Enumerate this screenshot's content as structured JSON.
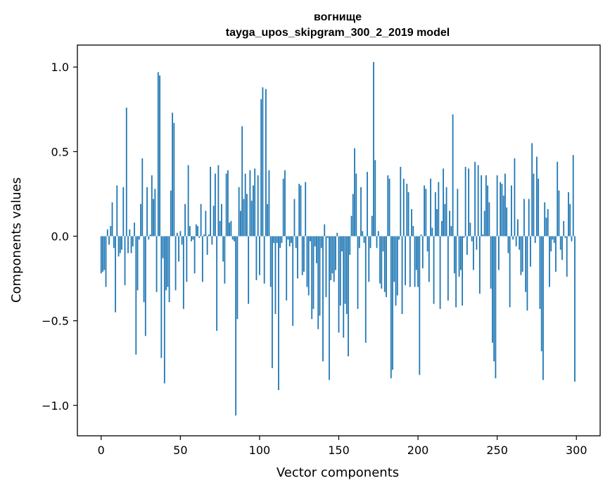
{
  "chart_data": {
    "type": "bar",
    "title": "вогнище",
    "subtitle": "tayga_upos_skipgram_300_2_2019 model",
    "xlabel": "Vector components",
    "ylabel": "Components values",
    "xlim": [
      -15,
      315
    ],
    "ylim": [
      -1.18,
      1.13
    ],
    "xticks": [
      0,
      50,
      100,
      150,
      200,
      250,
      300
    ],
    "xtick_labels": [
      "0",
      "50",
      "100",
      "150",
      "200",
      "250",
      "300"
    ],
    "yticks": [
      -1.0,
      -0.5,
      0.0,
      0.5,
      1.0
    ],
    "ytick_labels": [
      "−1.0",
      "−0.5",
      "0.0",
      "0.5",
      "1.0"
    ],
    "grid": false,
    "bar_color": "#1f77b4",
    "values": [
      -0.22,
      -0.21,
      -0.2,
      -0.3,
      0.04,
      -0.05,
      0.06,
      0.2,
      -0.07,
      -0.45,
      0.3,
      -0.12,
      -0.1,
      -0.08,
      0.29,
      -0.29,
      0.76,
      -0.1,
      0.04,
      -0.1,
      -0.06,
      0.08,
      -0.7,
      -0.32,
      -0.02,
      0.19,
      0.46,
      -0.39,
      -0.59,
      0.29,
      -0.02,
      0.01,
      0.36,
      0.22,
      0.28,
      -0.33,
      0.97,
      0.95,
      -0.72,
      -0.13,
      -0.87,
      -0.32,
      -0.3,
      -0.39,
      0.27,
      0.73,
      0.67,
      -0.32,
      0.02,
      -0.15,
      0.03,
      -0.05,
      -0.43,
      0.19,
      -0.27,
      0.42,
      0.06,
      -0.03,
      -0.02,
      -0.22,
      0.07,
      0.06,
      -0.01,
      0.19,
      -0.27,
      0.01,
      0.15,
      -0.11,
      0.01,
      0.41,
      -0.05,
      0.18,
      0.37,
      -0.56,
      0.42,
      0.09,
      0.19,
      -0.15,
      -0.28,
      0.37,
      0.39,
      0.08,
      0.09,
      -0.02,
      -0.03,
      -1.06,
      -0.49,
      0.29,
      0.15,
      0.65,
      0.22,
      0.37,
      0.25,
      -0.4,
      0.39,
      0.21,
      0.3,
      0.4,
      -0.26,
      0.36,
      -0.23,
      0.81,
      0.88,
      -0.28,
      0.87,
      0.19,
      0.39,
      -0.3,
      -0.78,
      -0.04,
      -0.46,
      -0.04,
      -0.91,
      -0.07,
      -0.04,
      0.34,
      0.39,
      -0.38,
      -0.02,
      -0.06,
      -0.04,
      -0.53,
      0.22,
      -0.07,
      -0.25,
      0.31,
      0.3,
      -0.23,
      -0.21,
      0.32,
      -0.3,
      -0.35,
      -0.03,
      -0.49,
      -0.43,
      -0.06,
      -0.16,
      -0.55,
      -0.47,
      -0.07,
      -0.74,
      0.07,
      -0.36,
      -0.01,
      -0.85,
      -0.26,
      -0.22,
      -0.27,
      -0.2,
      0.02,
      -0.57,
      -0.41,
      -0.09,
      -0.6,
      -0.4,
      -0.46,
      -0.71,
      -0.11,
      0.12,
      0.25,
      0.52,
      0.37,
      -0.43,
      -0.07,
      0.29,
      0.03,
      -0.04,
      -0.63,
      0.38,
      -0.27,
      -0.07,
      0.12,
      1.03,
      0.45,
      -0.07,
      0.03,
      -0.28,
      -0.31,
      -0.09,
      -0.33,
      -0.36,
      0.36,
      0.34,
      -0.84,
      -0.79,
      -0.27,
      -0.41,
      -0.35,
      -0.02,
      0.41,
      -0.46,
      0.34,
      -0.29,
      0.31,
      0.26,
      -0.3,
      0.16,
      0.06,
      -0.3,
      -0.2,
      -0.3,
      -0.82,
      0.01,
      -0.19,
      0.3,
      0.28,
      -0.09,
      -0.27,
      0.34,
      0.05,
      -0.4,
      0.26,
      0.16,
      0.32,
      -0.43,
      0.09,
      0.4,
      0.19,
      0.29,
      -0.38,
      0.15,
      0.06,
      0.72,
      -0.22,
      -0.42,
      0.28,
      -0.24,
      -0.2,
      -0.41,
      -0.01,
      0.41,
      -0.11,
      0.4,
      0.08,
      -0.03,
      -0.2,
      0.44,
      -0.08,
      0.42,
      -0.34,
      0.36,
      0.01,
      0.15,
      0.36,
      0.3,
      0.2,
      -0.31,
      -0.63,
      -0.74,
      -0.84,
      0.36,
      -0.2,
      0.32,
      0.31,
      0.24,
      0.37,
      0.17,
      -0.1,
      -0.42,
      0.3,
      -0.02,
      0.46,
      -0.06,
      0.1,
      -0.08,
      -0.23,
      -0.21,
      0.22,
      -0.33,
      -0.44,
      0.22,
      -0.18,
      0.55,
      0.37,
      -0.04,
      0.47,
      0.34,
      -0.43,
      -0.68,
      -0.85,
      0.2,
      0.11,
      0.16,
      -0.3,
      -0.09,
      -0.02,
      -0.04,
      -0.21,
      0.44,
      0.27,
      -0.08,
      -0.14,
      0.09,
      -0.01,
      -0.24,
      0.26,
      0.19,
      -0.03,
      0.48,
      -0.86
    ]
  }
}
